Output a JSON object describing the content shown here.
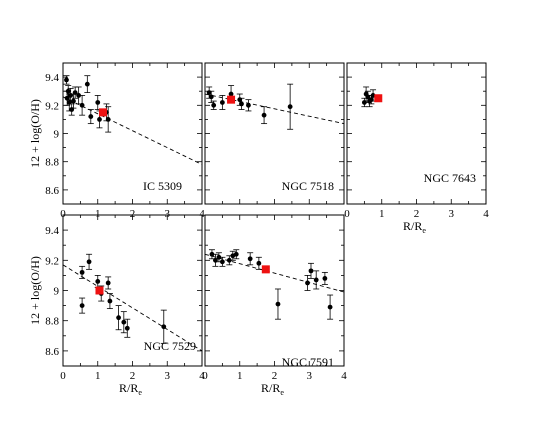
{
  "chart_data": [
    {
      "type": "scatter",
      "galaxy": "IC 5309",
      "xlim": [
        0,
        4
      ],
      "ylim": [
        8.5,
        9.5
      ],
      "xticks": [
        "0",
        "1",
        "2",
        "3",
        "4"
      ],
      "yticks": [
        "8.6",
        "8.8",
        "9",
        "9.2",
        "9.4"
      ],
      "ylabel": "12 + log(O/H)",
      "xlabel": "",
      "points": [
        {
          "x": 0.1,
          "y": 9.38,
          "err": 0.03
        },
        {
          "x": 0.12,
          "y": 9.25,
          "err": 0.05
        },
        {
          "x": 0.15,
          "y": 9.3,
          "err": 0.04
        },
        {
          "x": 0.18,
          "y": 9.22,
          "err": 0.06
        },
        {
          "x": 0.22,
          "y": 9.27,
          "err": 0.05
        },
        {
          "x": 0.25,
          "y": 9.17,
          "err": 0.04
        },
        {
          "x": 0.3,
          "y": 9.23,
          "err": 0.05
        },
        {
          "x": 0.35,
          "y": 9.29,
          "err": 0.04
        },
        {
          "x": 0.45,
          "y": 9.27,
          "err": 0.06
        },
        {
          "x": 0.55,
          "y": 9.2,
          "err": 0.07
        },
        {
          "x": 0.7,
          "y": 9.35,
          "err": 0.06
        },
        {
          "x": 0.8,
          "y": 9.12,
          "err": 0.05
        },
        {
          "x": 1.0,
          "y": 9.22,
          "err": 0.05
        },
        {
          "x": 1.05,
          "y": 9.1,
          "err": 0.06
        },
        {
          "x": 1.3,
          "y": 9.1,
          "err": 0.09
        },
        {
          "x": 1.25,
          "y": 9.15,
          "err": 0.06
        }
      ],
      "highlight": {
        "x": 1.15,
        "y": 9.15
      },
      "fit": {
        "x": [
          0,
          4
        ],
        "y": [
          9.26,
          8.78
        ]
      }
    },
    {
      "type": "scatter",
      "galaxy": "NGC 7518",
      "xlim": [
        0,
        4
      ],
      "ylim": [
        8.5,
        9.5
      ],
      "xticks": [],
      "yticks": [],
      "ylabel": "",
      "xlabel": "",
      "points": [
        {
          "x": 0.12,
          "y": 9.29,
          "err": 0.04
        },
        {
          "x": 0.18,
          "y": 9.26,
          "err": 0.04
        },
        {
          "x": 0.25,
          "y": 9.2,
          "err": 0.03
        },
        {
          "x": 0.5,
          "y": 9.22,
          "err": 0.05
        },
        {
          "x": 0.75,
          "y": 9.28,
          "err": 0.06
        },
        {
          "x": 1.0,
          "y": 9.24,
          "err": 0.04
        },
        {
          "x": 1.05,
          "y": 9.21,
          "err": 0.04
        },
        {
          "x": 1.25,
          "y": 9.2,
          "err": 0.04
        },
        {
          "x": 1.7,
          "y": 9.13,
          "err": 0.06
        },
        {
          "x": 2.45,
          "y": 9.19,
          "err": 0.16
        }
      ],
      "highlight": {
        "x": 0.75,
        "y": 9.24
      },
      "fit": {
        "x": [
          0,
          4
        ],
        "y": [
          9.28,
          9.07
        ]
      }
    },
    {
      "type": "scatter",
      "galaxy": "NGC 7643",
      "xlim": [
        0,
        4
      ],
      "ylim": [
        8.5,
        9.5
      ],
      "xticks": [
        "0",
        "1",
        "2",
        "3",
        "4"
      ],
      "yticks": [],
      "ylabel": "",
      "xlabel": "R/R",
      "xlabel_sub": "e",
      "points": [
        {
          "x": 0.5,
          "y": 9.22,
          "err": 0.03
        },
        {
          "x": 0.55,
          "y": 9.28,
          "err": 0.05
        },
        {
          "x": 0.6,
          "y": 9.26,
          "err": 0.04
        },
        {
          "x": 0.65,
          "y": 9.23,
          "err": 0.04
        },
        {
          "x": 0.7,
          "y": 9.24,
          "err": 0.03
        },
        {
          "x": 0.75,
          "y": 9.27,
          "err": 0.04
        }
      ],
      "highlight": {
        "x": 0.9,
        "y": 9.25
      },
      "fit": null
    },
    {
      "type": "scatter",
      "galaxy": "NGC 7529",
      "xlim": [
        0,
        4
      ],
      "ylim": [
        8.5,
        9.5
      ],
      "xticks": [
        "0",
        "1",
        "2",
        "3",
        "4"
      ],
      "yticks": [
        "8.6",
        "8.8",
        "9",
        "9.2",
        "9.4"
      ],
      "ylabel": "12 + log(O/H)",
      "xlabel": "R/R",
      "xlabel_sub": "e",
      "points": [
        {
          "x": 0.55,
          "y": 8.9,
          "err": 0.05
        },
        {
          "x": 0.55,
          "y": 9.12,
          "err": 0.04
        },
        {
          "x": 0.75,
          "y": 9.19,
          "err": 0.05
        },
        {
          "x": 1.0,
          "y": 9.06,
          "err": 0.04
        },
        {
          "x": 1.1,
          "y": 8.98,
          "err": 0.05
        },
        {
          "x": 1.3,
          "y": 9.05,
          "err": 0.04
        },
        {
          "x": 1.35,
          "y": 8.93,
          "err": 0.05
        },
        {
          "x": 1.6,
          "y": 8.82,
          "err": 0.08
        },
        {
          "x": 1.75,
          "y": 8.79,
          "err": 0.07
        },
        {
          "x": 1.85,
          "y": 8.75,
          "err": 0.06
        },
        {
          "x": 2.9,
          "y": 8.76,
          "err": 0.11
        }
      ],
      "highlight": {
        "x": 1.05,
        "y": 9.0
      },
      "fit": {
        "x": [
          0,
          4
        ],
        "y": [
          9.17,
          8.6
        ]
      }
    },
    {
      "type": "scatter",
      "galaxy": "NGC 7591",
      "xlim": [
        0,
        4
      ],
      "ylim": [
        8.5,
        9.5
      ],
      "xticks": [
        "0",
        "1",
        "2",
        "3",
        "4"
      ],
      "yticks": [],
      "ylabel": "",
      "xlabel": "R/R",
      "xlabel_sub": "e",
      "points": [
        {
          "x": 0.2,
          "y": 9.24,
          "err": 0.03
        },
        {
          "x": 0.3,
          "y": 9.2,
          "err": 0.04
        },
        {
          "x": 0.4,
          "y": 9.22,
          "err": 0.03
        },
        {
          "x": 0.5,
          "y": 9.19,
          "err": 0.03
        },
        {
          "x": 0.7,
          "y": 9.2,
          "err": 0.03
        },
        {
          "x": 0.8,
          "y": 9.23,
          "err": 0.03
        },
        {
          "x": 0.9,
          "y": 9.24,
          "err": 0.03
        },
        {
          "x": 1.3,
          "y": 9.21,
          "err": 0.04
        },
        {
          "x": 1.55,
          "y": 9.18,
          "err": 0.04
        },
        {
          "x": 2.1,
          "y": 8.91,
          "err": 0.1
        },
        {
          "x": 2.95,
          "y": 9.05,
          "err": 0.05
        },
        {
          "x": 3.05,
          "y": 9.13,
          "err": 0.05
        },
        {
          "x": 3.2,
          "y": 9.07,
          "err": 0.06
        },
        {
          "x": 3.45,
          "y": 9.08,
          "err": 0.04
        },
        {
          "x": 3.6,
          "y": 8.89,
          "err": 0.08
        }
      ],
      "highlight": {
        "x": 1.75,
        "y": 9.14
      },
      "fit": {
        "x": [
          0,
          4
        ],
        "y": [
          9.24,
          8.99
        ]
      }
    }
  ]
}
